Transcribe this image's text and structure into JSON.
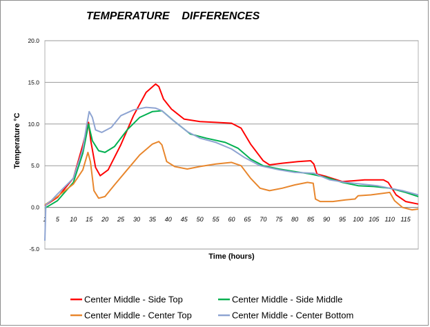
{
  "chart_data": {
    "type": "line",
    "title": "TEMPERATURE    DIFFERENCES",
    "xlabel": "Time (hours)",
    "ylabel": "Temperature °C",
    "xlim": [
      1,
      119
    ],
    "ylim": [
      -5,
      20
    ],
    "yticks": [
      "-5.0",
      "0.0",
      "5.0",
      "10.0",
      "15.0",
      "20.0"
    ],
    "xticks": [
      1,
      5,
      10,
      15,
      20,
      25,
      30,
      35,
      40,
      45,
      50,
      55,
      60,
      65,
      70,
      75,
      80,
      85,
      90,
      95,
      100,
      105,
      110,
      115
    ],
    "grid": "horizontal",
    "legend_position": "bottom",
    "series": [
      {
        "name": "Center Middle - Side Top",
        "color": "#ff0000",
        "points": [
          [
            1,
            0.2
          ],
          [
            5,
            1.2
          ],
          [
            10,
            3.5
          ],
          [
            13,
            7.5
          ],
          [
            14.8,
            10.2
          ],
          [
            15.5,
            8.0
          ],
          [
            17,
            4.8
          ],
          [
            18.5,
            3.8
          ],
          [
            21,
            4.5
          ],
          [
            25,
            7.5
          ],
          [
            29,
            11.0
          ],
          [
            33,
            13.8
          ],
          [
            36,
            14.8
          ],
          [
            37,
            14.5
          ],
          [
            38.5,
            13.0
          ],
          [
            41,
            11.8
          ],
          [
            45,
            10.6
          ],
          [
            50,
            10.3
          ],
          [
            55,
            10.2
          ],
          [
            60,
            10.1
          ],
          [
            63,
            9.5
          ],
          [
            66,
            7.6
          ],
          [
            70,
            5.6
          ],
          [
            72,
            5.1
          ],
          [
            76,
            5.3
          ],
          [
            81,
            5.5
          ],
          [
            85,
            5.6
          ],
          [
            86,
            5.2
          ],
          [
            87,
            4.0
          ],
          [
            90,
            3.7
          ],
          [
            95,
            3.1
          ],
          [
            99,
            3.2
          ],
          [
            102,
            3.3
          ],
          [
            105,
            3.3
          ],
          [
            108,
            3.3
          ],
          [
            109.5,
            3.0
          ],
          [
            112,
            1.5
          ],
          [
            115,
            0.7
          ],
          [
            119,
            0.4
          ]
        ]
      },
      {
        "name": "Center Middle - Side Middle",
        "color": "#00b050",
        "points": [
          [
            1,
            -0.1
          ],
          [
            5,
            0.8
          ],
          [
            10,
            3.0
          ],
          [
            13,
            6.5
          ],
          [
            14.8,
            10.0
          ],
          [
            16,
            8.0
          ],
          [
            18,
            6.8
          ],
          [
            20,
            6.6
          ],
          [
            23,
            7.3
          ],
          [
            27,
            9.3
          ],
          [
            31,
            10.8
          ],
          [
            35,
            11.5
          ],
          [
            38,
            11.6
          ],
          [
            42,
            10.3
          ],
          [
            47,
            8.8
          ],
          [
            52,
            8.3
          ],
          [
            58,
            7.8
          ],
          [
            62,
            7.1
          ],
          [
            66,
            5.8
          ],
          [
            70,
            5.0
          ],
          [
            75,
            4.6
          ],
          [
            80,
            4.3
          ],
          [
            85,
            4.0
          ],
          [
            90,
            3.6
          ],
          [
            95,
            3.0
          ],
          [
            100,
            2.6
          ],
          [
            105,
            2.5
          ],
          [
            110,
            2.3
          ],
          [
            115,
            1.8
          ],
          [
            119,
            1.3
          ]
        ]
      },
      {
        "name": "Center Middle - Center Top",
        "color": "#e8862c",
        "points": [
          [
            1,
            0.3
          ],
          [
            5,
            1.3
          ],
          [
            10,
            2.8
          ],
          [
            13,
            4.5
          ],
          [
            14.6,
            6.6
          ],
          [
            15.4,
            5.5
          ],
          [
            16.5,
            2.0
          ],
          [
            18,
            1.1
          ],
          [
            20,
            1.3
          ],
          [
            23,
            2.7
          ],
          [
            27,
            4.5
          ],
          [
            31,
            6.3
          ],
          [
            35,
            7.6
          ],
          [
            37,
            7.9
          ],
          [
            38,
            7.5
          ],
          [
            39.5,
            5.5
          ],
          [
            42,
            4.9
          ],
          [
            46,
            4.6
          ],
          [
            50,
            4.9
          ],
          [
            55,
            5.2
          ],
          [
            60,
            5.4
          ],
          [
            63,
            5.0
          ],
          [
            66,
            3.5
          ],
          [
            69,
            2.3
          ],
          [
            72,
            2.0
          ],
          [
            76,
            2.3
          ],
          [
            80,
            2.7
          ],
          [
            84,
            3.0
          ],
          [
            85.8,
            2.9
          ],
          [
            86.5,
            1.0
          ],
          [
            88,
            0.7
          ],
          [
            92,
            0.7
          ],
          [
            96,
            0.9
          ],
          [
            99,
            1.0
          ],
          [
            100,
            1.4
          ],
          [
            104,
            1.5
          ],
          [
            108,
            1.7
          ],
          [
            110,
            1.8
          ],
          [
            111.5,
            0.8
          ],
          [
            114,
            0.0
          ],
          [
            117,
            -0.3
          ],
          [
            119,
            -0.2
          ]
        ]
      },
      {
        "name": "Center Middle - Center Bottom",
        "color": "#8ea4d2",
        "points": [
          [
            1,
            -4.0
          ],
          [
            1.3,
            0.3
          ],
          [
            3,
            0.8
          ],
          [
            5,
            1.6
          ],
          [
            10,
            3.5
          ],
          [
            13,
            7.0
          ],
          [
            14.2,
            9.8
          ],
          [
            15,
            11.5
          ],
          [
            16,
            10.8
          ],
          [
            17,
            9.3
          ],
          [
            19,
            9.0
          ],
          [
            22,
            9.6
          ],
          [
            25,
            11.0
          ],
          [
            29,
            11.7
          ],
          [
            33,
            12.0
          ],
          [
            36,
            11.9
          ],
          [
            38,
            11.6
          ],
          [
            41,
            10.6
          ],
          [
            46,
            9.1
          ],
          [
            50,
            8.3
          ],
          [
            55,
            7.8
          ],
          [
            60,
            7.0
          ],
          [
            64,
            6.0
          ],
          [
            69,
            5.0
          ],
          [
            75,
            4.5
          ],
          [
            80,
            4.2
          ],
          [
            86,
            4.1
          ],
          [
            91,
            3.3
          ],
          [
            96,
            3.0
          ],
          [
            101,
            2.8
          ],
          [
            106,
            2.6
          ],
          [
            110,
            2.3
          ],
          [
            114,
            2.0
          ],
          [
            119,
            1.5
          ]
        ]
      }
    ]
  }
}
